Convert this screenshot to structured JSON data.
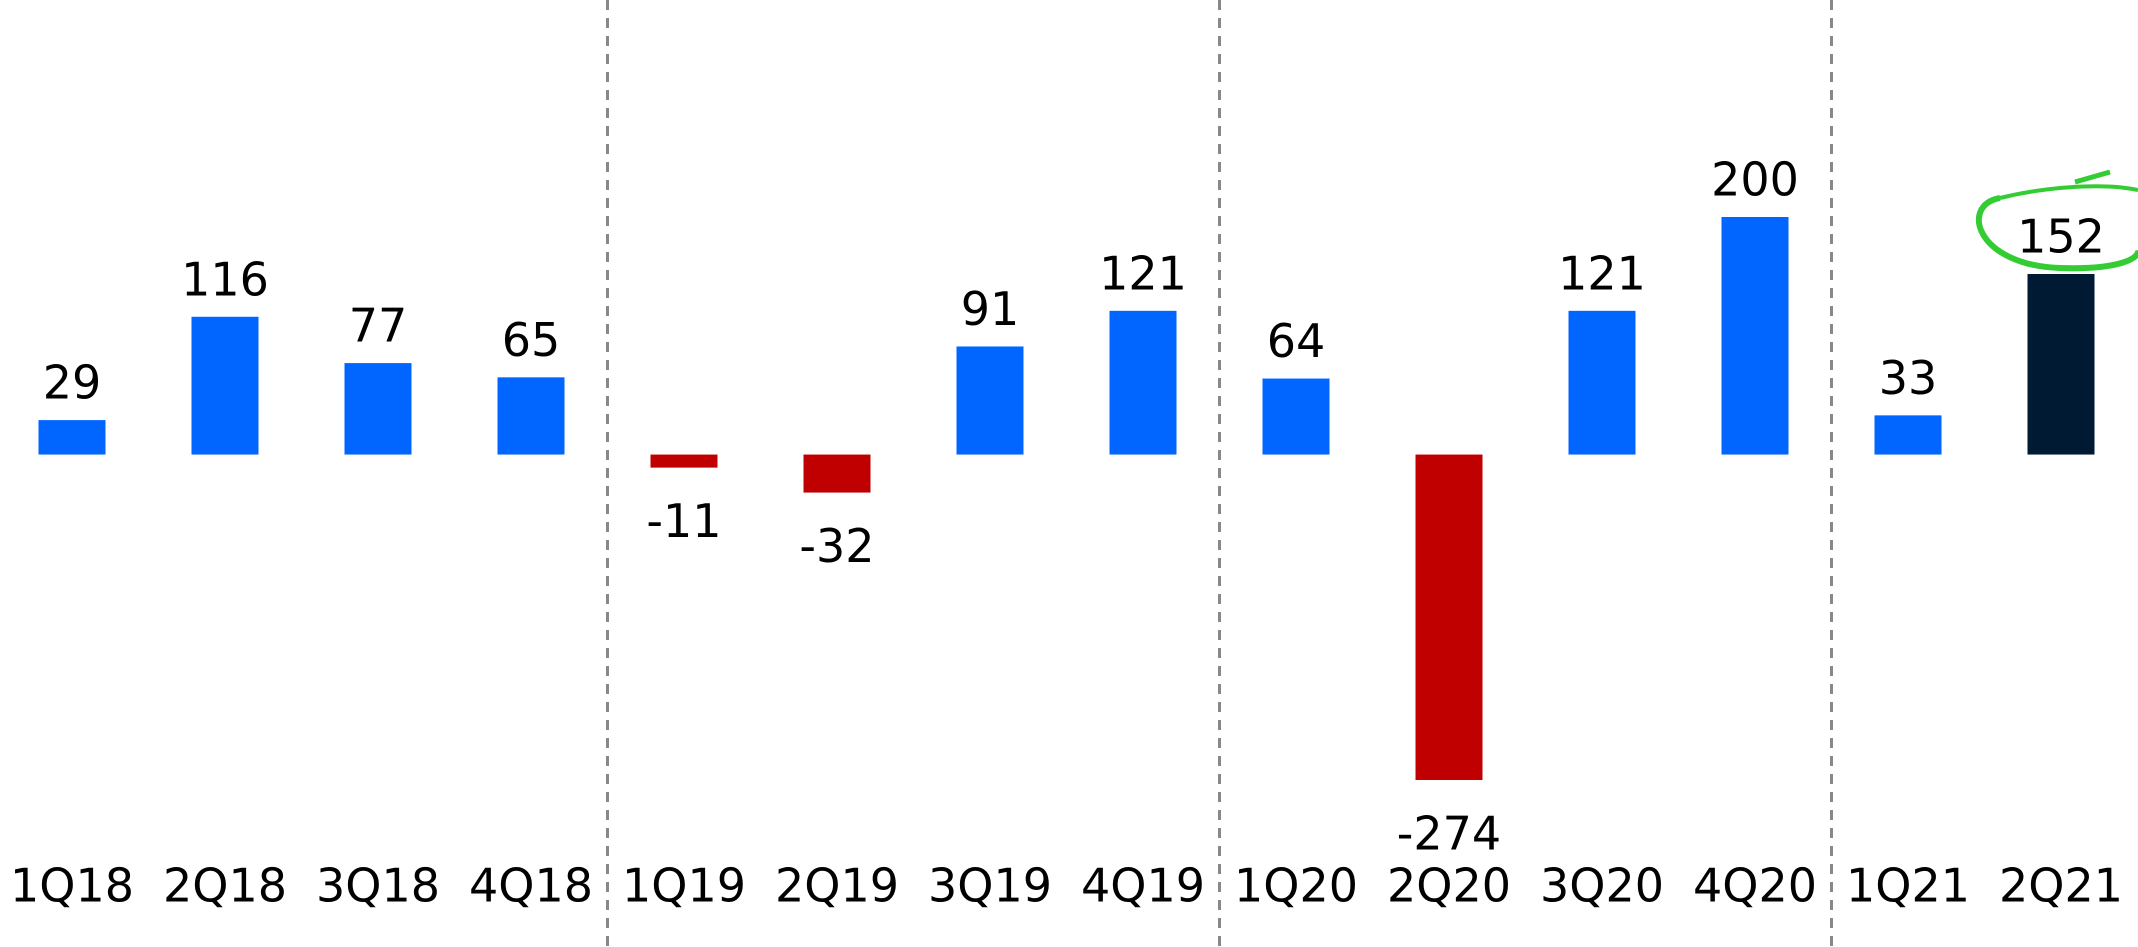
{
  "chart_data": {
    "type": "bar",
    "categories": [
      "1Q18",
      "2Q18",
      "3Q18",
      "4Q18",
      "1Q19",
      "2Q19",
      "3Q19",
      "4Q19",
      "1Q20",
      "2Q20",
      "3Q20",
      "4Q20",
      "1Q21",
      "2Q21"
    ],
    "values": [
      29,
      116,
      77,
      65,
      -11,
      -32,
      91,
      121,
      64,
      -274,
      121,
      200,
      33,
      152
    ],
    "colors": [
      "#0066ff",
      "#0066ff",
      "#0066ff",
      "#0066ff",
      "#c00000",
      "#c00000",
      "#0066ff",
      "#0066ff",
      "#0066ff",
      "#c00000",
      "#0066ff",
      "#0066ff",
      "#0066ff",
      "#001a33"
    ],
    "label_colors": [
      "#0a2a66",
      "#0a2a66",
      "#000000",
      "#000000",
      "#000000",
      "#000000",
      "#000000",
      "#000000",
      "#000000",
      "#000000",
      "#000000",
      "#000000",
      "#000000",
      "#000000"
    ]
  }
}
